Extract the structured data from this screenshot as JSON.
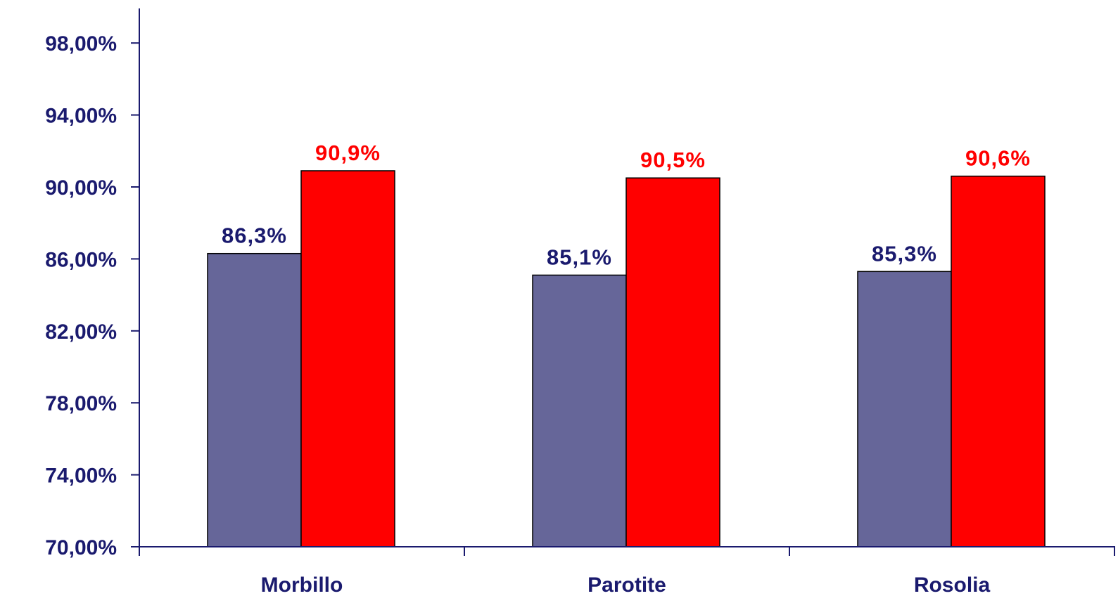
{
  "chart_data": {
    "type": "bar",
    "categories": [
      "Morbillo",
      "Parotite",
      "Rosolia"
    ],
    "series": [
      {
        "color": "#666699",
        "label_color": "#1a1a6e",
        "values": [
          86.3,
          85.1,
          85.3
        ],
        "data_labels": [
          "86,3%",
          "85,1%",
          "85,3%"
        ]
      },
      {
        "color": "#ff0000",
        "label_color": "#ff0000",
        "values": [
          90.9,
          90.5,
          90.6
        ],
        "data_labels": [
          "90,9%",
          "90,5%",
          "90,6%"
        ]
      }
    ],
    "ylim": [
      70,
      100
    ],
    "y_ticks": [
      70,
      74,
      78,
      82,
      86,
      90,
      94,
      98
    ],
    "y_tick_labels": [
      "70,00%",
      "74,00%",
      "78,00%",
      "82,00%",
      "86,00%",
      "90,00%",
      "94,00%",
      "98,00%"
    ],
    "title": "",
    "xlabel": "",
    "ylabel": "",
    "grid": false,
    "legend": false,
    "axis_color": "#1a1a6e"
  }
}
